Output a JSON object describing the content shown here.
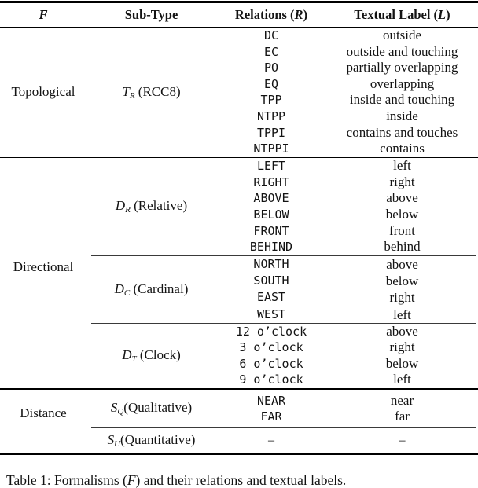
{
  "table": {
    "header": {
      "col1": {
        "symbol": "F"
      },
      "col2": "Sub-Type",
      "col3": {
        "prefix": "Relations (",
        "symbol": "R",
        "suffix": ")"
      },
      "col4": {
        "prefix": "Textual Label (",
        "symbol": "L",
        "suffix": ")"
      }
    },
    "sections": [
      {
        "family": "Topological",
        "subtypes": [
          {
            "sym": "T",
            "sub": "R",
            "rest": " (RCC8)",
            "rows": [
              {
                "relation": "DC",
                "label": "outside"
              },
              {
                "relation": "EC",
                "label": "outside and touching"
              },
              {
                "relation": "PO",
                "label": "partially overlapping"
              },
              {
                "relation": "EQ",
                "label": "overlapping"
              },
              {
                "relation": "TPP",
                "label": "inside and touching"
              },
              {
                "relation": "NTPP",
                "label": "inside"
              },
              {
                "relation": "TPPI",
                "label": "contains and touches"
              },
              {
                "relation": "NTPPI",
                "label": "contains"
              }
            ]
          }
        ]
      },
      {
        "family": "Directional",
        "subtypes": [
          {
            "sym": "D",
            "sub": "R",
            "rest": " (Relative)",
            "rows": [
              {
                "relation": "LEFT",
                "label": "left"
              },
              {
                "relation": "RIGHT",
                "label": "right"
              },
              {
                "relation": "ABOVE",
                "label": "above"
              },
              {
                "relation": "BELOW",
                "label": "below"
              },
              {
                "relation": "FRONT",
                "label": "front"
              },
              {
                "relation": "BEHIND",
                "label": "behind"
              }
            ]
          },
          {
            "sym": "D",
            "sub": "C",
            "rest": " (Cardinal)",
            "rows": [
              {
                "relation": "NORTH",
                "label": "above"
              },
              {
                "relation": "SOUTH",
                "label": "below"
              },
              {
                "relation": "EAST",
                "label": "right"
              },
              {
                "relation": "WEST",
                "label": "left"
              }
            ]
          },
          {
            "sym": "D",
            "sub": "T",
            "rest": " (Clock)",
            "rows": [
              {
                "relation": "12 o’clock",
                "label": "above"
              },
              {
                "relation": "3 o’clock",
                "label": "right"
              },
              {
                "relation": "6 o’clock",
                "label": "below"
              },
              {
                "relation": "9 o’clock",
                "label": "left"
              }
            ]
          }
        ]
      },
      {
        "family": "Distance",
        "subtypes": [
          {
            "sym": "S",
            "sub": "Q",
            "rest": "(Qualitative)",
            "rows": [
              {
                "relation": "NEAR",
                "label": "near"
              },
              {
                "relation": "FAR",
                "label": "far"
              }
            ]
          },
          {
            "sym": "S",
            "sub": "U",
            "rest": "(Quantitative)",
            "rows": [
              {
                "relation": "–",
                "label": "–"
              }
            ]
          }
        ]
      }
    ]
  },
  "caption": {
    "prefix": "Table 1: Formalisms (",
    "symbol": "F",
    "rest": ") and their relations and textual labels."
  }
}
